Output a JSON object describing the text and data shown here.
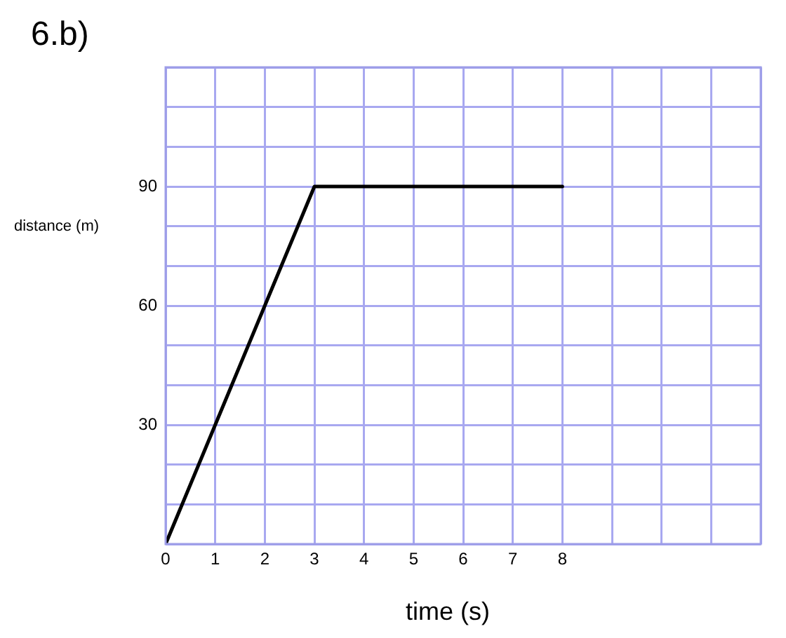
{
  "chart_data": {
    "type": "line",
    "title": "6.b)",
    "xlabel": "time (s)",
    "ylabel": "distance (m)",
    "x": [
      0,
      3,
      8
    ],
    "series": [
      {
        "color": "#000000",
        "values": [
          0,
          90,
          90
        ]
      }
    ],
    "xlim": [
      0,
      12
    ],
    "xticks": [
      0,
      1,
      2,
      3,
      4,
      5,
      6,
      7,
      8,
      {
        "value": 9,
        "label": null
      },
      {
        "value": 10,
        "label": null
      },
      {
        "value": 11,
        "label": null
      },
      {
        "value": 12,
        "label": null
      }
    ],
    "ylim": [
      0,
      120
    ],
    "yticks": [
      {
        "value": 0,
        "label": null
      },
      {
        "value": 10,
        "label": null
      },
      {
        "value": 20,
        "label": null
      },
      30,
      {
        "value": 40,
        "label": null
      },
      {
        "value": 50,
        "label": null
      },
      60,
      {
        "value": 70,
        "label": null
      },
      {
        "value": 80,
        "label": null
      },
      90,
      {
        "value": 100,
        "label": null
      },
      {
        "value": 110,
        "label": null
      },
      {
        "value": 120,
        "label": null
      }
    ],
    "grid": true,
    "marker": "none",
    "line_style": "solid",
    "legend": false
  }
}
